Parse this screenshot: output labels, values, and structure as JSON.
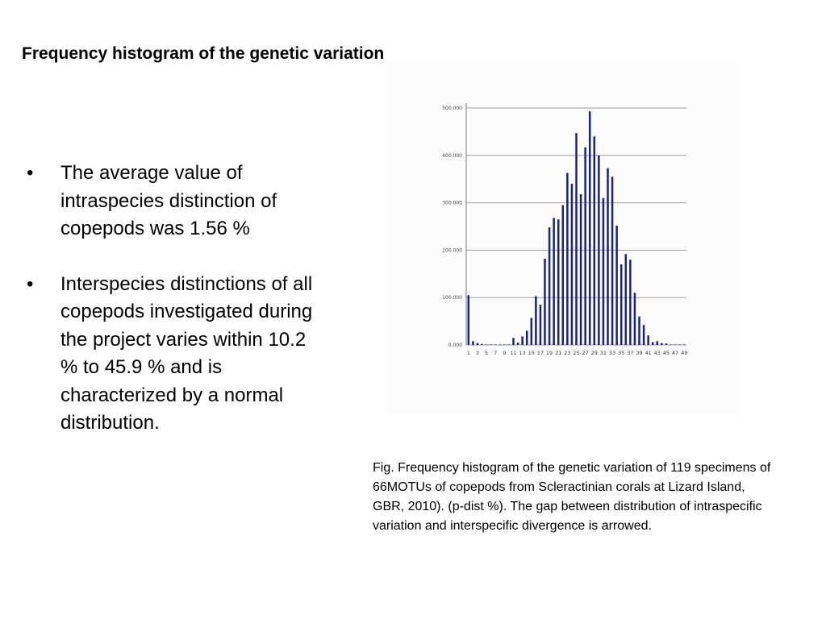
{
  "slide": {
    "title": "Frequency histogram of the genetic variation",
    "bullets": [
      "The average value of intraspecies distinction of copepods was 1.56 %",
      "Interspecies distinctions of all copepods investigated during the project varies within 10.2 % to 45.9 % and is characterized by a normal distribution."
    ],
    "bullet_glyph": "•",
    "caption": "Fig. Frequency histogram of the genetic variation of 119 specimens of 66MOTUs of copepods from Scleractinian corals at Lizard Island, GBR, 2010). (p-dist %). The gap between distribution of intraspecific variation and interspecific divergence is arrowed."
  },
  "chart_data": {
    "type": "bar",
    "title": "",
    "xlabel": "",
    "ylabel": "",
    "bar_color": "#1a237e",
    "grid": true,
    "ylim": [
      0,
      500
    ],
    "y_ticks": [
      0,
      100,
      200,
      300,
      400,
      500
    ],
    "y_tick_labels": [
      "0.000",
      "100.000",
      "200.000",
      "300.000",
      "400.000",
      "500.000"
    ],
    "x_tick_labels": [
      "1",
      "3",
      "5",
      "7",
      "9",
      "11",
      "13",
      "15",
      "17",
      "19",
      "21",
      "23",
      "25",
      "27",
      "29",
      "31",
      "33",
      "35",
      "37",
      "39",
      "41",
      "43",
      "45",
      "47",
      "49"
    ],
    "categories": [
      "1",
      "2",
      "3",
      "4",
      "5",
      "6",
      "7",
      "8",
      "9",
      "10",
      "11",
      "12",
      "13",
      "14",
      "15",
      "16",
      "17",
      "18",
      "19",
      "20",
      "21",
      "22",
      "23",
      "24",
      "25",
      "26",
      "27",
      "28",
      "29",
      "30",
      "31",
      "32",
      "33",
      "34",
      "35",
      "36",
      "37",
      "38",
      "39",
      "40",
      "41",
      "42",
      "43",
      "44",
      "45",
      "46",
      "47",
      "48",
      "49"
    ],
    "values": [
      105,
      8,
      4,
      2,
      1,
      1,
      1,
      1,
      1,
      1,
      15,
      5,
      18,
      30,
      57,
      103,
      85,
      182,
      248,
      268,
      265,
      295,
      363,
      340,
      447,
      318,
      417,
      493,
      440,
      400,
      310,
      373,
      355,
      252,
      170,
      192,
      180,
      110,
      60,
      42,
      20,
      6,
      8,
      4,
      3,
      1,
      1,
      1,
      1
    ]
  }
}
